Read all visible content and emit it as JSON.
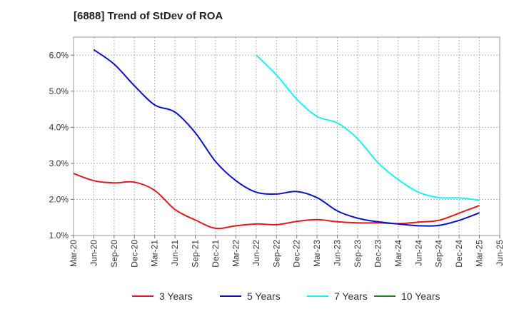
{
  "chart_data": {
    "type": "line",
    "title": "[6888]  Trend of StDev of ROA",
    "xlabel": "",
    "ylabel": "",
    "x_labels": [
      "Mar-20",
      "Jun-20",
      "Sep-20",
      "Dec-20",
      "Mar-21",
      "Jun-21",
      "Sep-21",
      "Dec-21",
      "Mar-22",
      "Jun-22",
      "Sep-22",
      "Dec-22",
      "Mar-23",
      "Jun-23",
      "Sep-23",
      "Dec-23",
      "Mar-24",
      "Jun-24",
      "Sep-24",
      "Dec-24",
      "Mar-25",
      "Jun-25"
    ],
    "y_ticks": [
      "1.0%",
      "2.0%",
      "3.0%",
      "4.0%",
      "5.0%",
      "6.0%"
    ],
    "ylim": [
      1.0,
      6.5
    ],
    "grid": true,
    "legend_position": "bottom",
    "series": [
      {
        "name": "3 Years",
        "color": "#e31a1c",
        "values": [
          2.72,
          2.52,
          2.46,
          2.48,
          2.25,
          1.72,
          1.43,
          1.2,
          1.27,
          1.32,
          1.3,
          1.39,
          1.44,
          1.38,
          1.35,
          1.35,
          1.33,
          1.37,
          1.42,
          1.62,
          1.83,
          null
        ]
      },
      {
        "name": "5 Years",
        "color": "#0a12c8",
        "values": [
          null,
          6.15,
          5.75,
          5.15,
          4.62,
          4.42,
          3.85,
          3.05,
          2.52,
          2.2,
          2.15,
          2.22,
          2.05,
          1.68,
          1.48,
          1.38,
          1.32,
          1.27,
          1.28,
          1.42,
          1.63,
          null
        ]
      },
      {
        "name": "7 Years",
        "color": "#19f2f2",
        "values": [
          null,
          null,
          null,
          null,
          null,
          null,
          null,
          null,
          null,
          6.0,
          5.45,
          4.78,
          4.3,
          4.12,
          3.68,
          3.02,
          2.55,
          2.2,
          2.05,
          2.04,
          1.98,
          null
        ]
      },
      {
        "name": "10 Years",
        "color": "#1a8a1a",
        "values": [
          null,
          null,
          null,
          null,
          null,
          null,
          null,
          null,
          null,
          null,
          null,
          null,
          null,
          null,
          null,
          null,
          null,
          null,
          null,
          null,
          null,
          null
        ]
      }
    ]
  }
}
